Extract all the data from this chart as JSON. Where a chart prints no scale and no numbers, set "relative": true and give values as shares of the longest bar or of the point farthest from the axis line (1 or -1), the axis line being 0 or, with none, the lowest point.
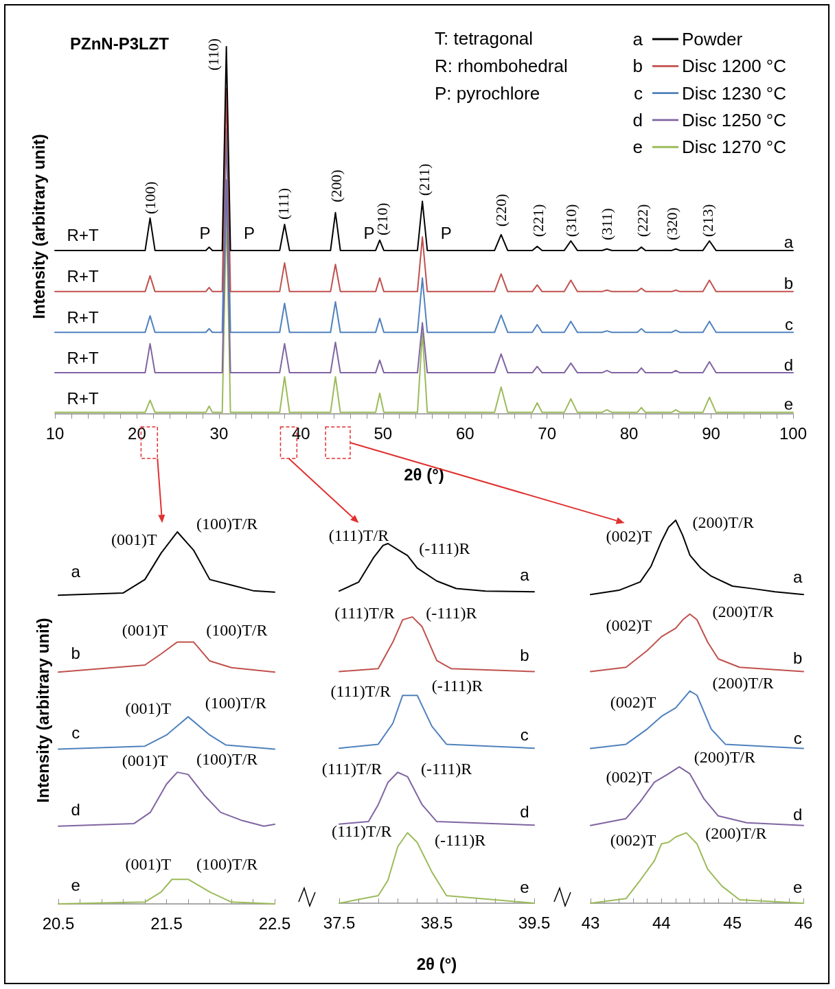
{
  "chart_data": [
    {
      "type": "line",
      "title": "PZnN-P3LZT",
      "xlabel": "2θ (°)",
      "ylabel": "Intensity (arbitrary unit)",
      "relative": true,
      "legend": "top right",
      "xlim": [
        10,
        100
      ],
      "xticks": [
        10,
        {
          "value": 12,
          "label": null
        },
        {
          "value": 14,
          "label": null
        },
        {
          "value": 16,
          "label": null
        },
        {
          "value": 18,
          "label": null
        },
        20,
        {
          "value": 22,
          "label": null
        },
        {
          "value": 24,
          "label": null
        },
        {
          "value": 26,
          "label": null
        },
        {
          "value": 28,
          "label": null
        },
        30,
        {
          "value": 32,
          "label": null
        },
        {
          "value": 34,
          "label": null
        },
        {
          "value": 36,
          "label": null
        },
        {
          "value": 38,
          "label": null
        },
        40,
        {
          "value": 42,
          "label": null
        },
        {
          "value": 44,
          "label": null
        },
        {
          "value": 46,
          "label": null
        },
        {
          "value": 48,
          "label": null
        },
        50,
        {
          "value": 52,
          "label": null
        },
        {
          "value": 54,
          "label": null
        },
        {
          "value": 56,
          "label": null
        },
        {
          "value": 58,
          "label": null
        },
        60,
        {
          "value": 62,
          "label": null
        },
        {
          "value": 64,
          "label": null
        },
        {
          "value": 66,
          "label": null
        },
        {
          "value": 68,
          "label": null
        },
        70,
        {
          "value": 72,
          "label": null
        },
        {
          "value": 74,
          "label": null
        },
        {
          "value": 76,
          "label": null
        },
        {
          "value": 78,
          "label": null
        },
        80,
        {
          "value": 82,
          "label": null
        },
        {
          "value": 84,
          "label": null
        },
        {
          "value": 86,
          "label": null
        },
        {
          "value": 88,
          "label": null
        },
        90,
        {
          "value": 92,
          "label": null
        },
        {
          "value": 94,
          "label": null
        },
        {
          "value": 96,
          "label": null
        },
        {
          "value": 98,
          "label": null
        },
        100
      ],
      "x": [
        10,
        21.0,
        21.6,
        22.2,
        28.4,
        28.8,
        29.2,
        30.4,
        30.9,
        31.4,
        37.4,
        38.0,
        38.6,
        43.6,
        44.2,
        44.8,
        49.1,
        49.6,
        50.1,
        54.2,
        54.8,
        55.4,
        63.6,
        64.4,
        65.2,
        68.2,
        68.8,
        69.4,
        72.1,
        72.9,
        73.7,
        76.7,
        77.3,
        77.9,
        81.0,
        81.5,
        82.0,
        85.2,
        85.7,
        86.2,
        89.0,
        89.8,
        90.6,
        100
      ],
      "series": [
        {
          "name": "Powder",
          "color": "#000000",
          "values": [
            0.445,
            0.445,
            0.533,
            0.445,
            0.445,
            0.454,
            0.445,
            0.445,
            1,
            0.445,
            0.445,
            0.516,
            0.445,
            0.445,
            0.548,
            0.445,
            0.445,
            0.473,
            0.445,
            0.445,
            0.579,
            0.445,
            0.445,
            0.488,
            0.445,
            0.445,
            0.456,
            0.445,
            0.445,
            0.471,
            0.445,
            0.445,
            0.449,
            0.445,
            0.445,
            0.454,
            0.445,
            0.445,
            0.449,
            0.445,
            0.445,
            0.471,
            0.445,
            0.445
          ]
        },
        {
          "name": "Disc 1200 °C",
          "color": "#c0504d",
          "values": [
            0.333,
            0.333,
            0.376,
            0.333,
            0.333,
            0.344,
            0.333,
            0.333,
            0.886,
            0.333,
            0.333,
            0.411,
            0.333,
            0.333,
            0.407,
            0.333,
            0.333,
            0.37,
            0.333,
            0.333,
            0.482,
            0.333,
            0.333,
            0.381,
            0.333,
            0.333,
            0.351,
            0.333,
            0.333,
            0.364,
            0.333,
            0.333,
            0.337,
            0.333,
            0.333,
            0.342,
            0.333,
            0.333,
            0.337,
            0.333,
            0.333,
            0.364,
            0.333,
            0.333
          ]
        },
        {
          "name": "Disc 1230 °C",
          "color": "#4f81bd",
          "values": [
            0.222,
            0.222,
            0.267,
            0.222,
            0.222,
            0.232,
            0.222,
            0.222,
            0.776,
            0.222,
            0.222,
            0.301,
            0.222,
            0.222,
            0.305,
            0.222,
            0.222,
            0.26,
            0.222,
            0.222,
            0.37,
            0.222,
            0.222,
            0.269,
            0.222,
            0.222,
            0.243,
            0.222,
            0.222,
            0.252,
            0.222,
            0.222,
            0.226,
            0.222,
            0.222,
            0.232,
            0.222,
            0.222,
            0.228,
            0.222,
            0.222,
            0.252,
            0.222,
            0.222
          ]
        },
        {
          "name": "Disc 1250 °C",
          "color": "#8064a2",
          "values": [
            0.112,
            0.112,
            0.191,
            0.112,
            0.112,
            0.112,
            0.112,
            0.112,
            0.637,
            0.112,
            0.112,
            0.191,
            0.112,
            0.112,
            0.195,
            0.112,
            0.112,
            0.146,
            0.112,
            0.112,
            0.248,
            0.112,
            0.112,
            0.163,
            0.112,
            0.112,
            0.129,
            0.112,
            0.112,
            0.138,
            0.112,
            0.112,
            0.118,
            0.112,
            0.112,
            0.125,
            0.112,
            0.112,
            0.118,
            0.112,
            0.112,
            0.142,
            0.112,
            0.112
          ]
        },
        {
          "name": "Disc 1270 °C",
          "color": "#9bbb59",
          "values": [
            0.004,
            0.004,
            0.037,
            0.004,
            0.004,
            0.021,
            0.004,
            0.004,
            0.553,
            0.004,
            0.004,
            0.101,
            0.004,
            0.004,
            0.101,
            0.004,
            0.004,
            0.056,
            0.004,
            0.004,
            0.222,
            0.004,
            0.004,
            0.073,
            0.004,
            0.004,
            0.03,
            0.004,
            0.004,
            0.041,
            0.004,
            0.004,
            0.011,
            0.004,
            0.004,
            0.017,
            0.004,
            0.004,
            0.011,
            0.004,
            0.004,
            0.045,
            0.004,
            0.004
          ]
        }
      ],
      "annotations": [
        "T: tetragonal",
        "R: rhombohedral",
        "P: pyrochlore",
        "(100)",
        "(110)",
        "(111)",
        "(200)",
        "(210)",
        "(211)",
        "(220)",
        "(221)",
        "(310)",
        "(311)",
        "(222)",
        "(320)",
        "(213)",
        "P",
        "P",
        "P",
        "P",
        "R+T",
        "R+T",
        "R+T",
        "R+T",
        "R+T",
        "a",
        "b",
        "c",
        "d",
        "e"
      ]
    },
    {
      "type": "line",
      "ylabel": "Intensity (arbitrary unit)",
      "relative": true,
      "xlim": [
        20.5,
        22.5
      ],
      "xticks": [
        20.5,
        {
          "value": 20.7,
          "label": null
        },
        {
          "value": 20.9,
          "label": null
        },
        {
          "value": 21.1,
          "label": null
        },
        {
          "value": 21.3,
          "label": null
        },
        21.5,
        {
          "value": 21.7,
          "label": null
        },
        {
          "value": 21.9,
          "label": null
        },
        {
          "value": 22.1,
          "label": null
        },
        {
          "value": 22.3,
          "label": null
        },
        22.5
      ],
      "series": [
        {
          "color": "#000000",
          "x": [
            20.5,
            21.1,
            21.3,
            21.45,
            21.6,
            21.75,
            21.9,
            22.1,
            22.3,
            22.5
          ],
          "values": [
            0.83,
            0.836,
            0.872,
            0.943,
            1,
            0.951,
            0.872,
            0.857,
            0.842,
            0.838
          ]
        },
        {
          "color": "#c0504d",
          "x": [
            20.5,
            21.3,
            21.45,
            21.6,
            21.75,
            21.9,
            22.1,
            22.5
          ],
          "values": [
            0.623,
            0.642,
            0.672,
            0.704,
            0.704,
            0.653,
            0.635,
            0.623
          ]
        },
        {
          "color": "#4f81bd",
          "x": [
            20.5,
            21.3,
            21.5,
            21.7,
            21.9,
            22.05,
            22.5
          ],
          "values": [
            0.416,
            0.424,
            0.454,
            0.503,
            0.454,
            0.427,
            0.416
          ]
        },
        {
          "color": "#8064a2",
          "x": [
            20.5,
            21.2,
            21.35,
            21.5,
            21.6,
            21.7,
            21.85,
            22.0,
            22.2,
            22.4,
            22.5
          ],
          "values": [
            0.209,
            0.216,
            0.246,
            0.322,
            0.354,
            0.348,
            0.292,
            0.246,
            0.224,
            0.209,
            0.214
          ]
        },
        {
          "color": "#9bbb59",
          "x": [
            20.5,
            21.3,
            21.45,
            21.55,
            21.7,
            21.9,
            22.1,
            22.5
          ],
          "values": [
            0,
            0.005,
            0.032,
            0.066,
            0.066,
            0.032,
            0.005,
            0
          ]
        }
      ],
      "annotations": [
        "(001)T",
        "(100)T/R",
        "(001)T",
        "(100)T/R",
        "(001)T",
        "(100)T/R",
        "(001)T",
        "(100)T/R",
        "(001)T",
        "(100)T/R",
        "a",
        "b",
        "c",
        "d",
        "e"
      ]
    },
    {
      "type": "line",
      "xlabel": "2θ (°)",
      "relative": true,
      "xlim": [
        37.5,
        39.5
      ],
      "xticks": [
        37.5,
        {
          "value": 37.7,
          "label": null
        },
        {
          "value": 37.9,
          "label": null
        },
        {
          "value": 38.1,
          "label": null
        },
        {
          "value": 38.3,
          "label": null
        },
        38.5,
        {
          "value": 38.7,
          "label": null
        },
        {
          "value": 38.9,
          "label": null
        },
        {
          "value": 39.1,
          "label": null
        },
        {
          "value": 39.3,
          "label": null
        },
        39.5
      ],
      "series": [
        {
          "color": "#000000",
          "x": [
            37.5,
            37.7,
            37.85,
            37.95,
            38.0,
            38.1,
            38.2,
            38.3,
            38.5,
            38.7,
            39.0,
            39.5
          ],
          "values": [
            0.868,
            0.893,
            0.96,
            0.995,
            1,
            0.983,
            0.967,
            0.932,
            0.896,
            0.875,
            0.868,
            0.866
          ]
        },
        {
          "color": "#c0504d",
          "x": [
            37.5,
            37.9,
            38.05,
            38.15,
            38.25,
            38.35,
            38.5,
            38.65,
            39.5
          ],
          "values": [
            0.644,
            0.652,
            0.726,
            0.788,
            0.796,
            0.769,
            0.675,
            0.652,
            0.644
          ]
        },
        {
          "color": "#4f81bd",
          "x": [
            37.5,
            37.9,
            38.05,
            38.15,
            38.3,
            38.45,
            38.6,
            39.5
          ],
          "values": [
            0.431,
            0.442,
            0.5,
            0.578,
            0.578,
            0.492,
            0.442,
            0.431
          ]
        },
        {
          "color": "#8064a2",
          "x": [
            37.5,
            37.8,
            37.9,
            38.0,
            38.1,
            38.2,
            38.35,
            38.5,
            39.5
          ],
          "values": [
            0.22,
            0.227,
            0.274,
            0.336,
            0.364,
            0.352,
            0.274,
            0.227,
            0.217
          ]
        },
        {
          "color": "#9bbb59",
          "x": [
            37.5,
            37.9,
            38.0,
            38.1,
            38.2,
            38.3,
            38.45,
            38.6,
            39.5
          ],
          "values": [
            0,
            0.021,
            0.064,
            0.157,
            0.196,
            0.169,
            0.087,
            0.021,
            0
          ]
        }
      ],
      "annotations": [
        "(111)T/R",
        "(-111)R",
        "(111)T/R",
        "(-111)R",
        "(111)T/R",
        "(-111)R",
        "(111)T/R",
        "(-111)R",
        "(111)T/R",
        "(-111)R",
        "a",
        "b",
        "c",
        "d",
        "e"
      ]
    },
    {
      "type": "line",
      "relative": true,
      "xlim": [
        43,
        46
      ],
      "xticks": [
        43,
        {
          "value": 43.2,
          "label": null
        },
        {
          "value": 43.4,
          "label": null
        },
        {
          "value": 43.6,
          "label": null
        },
        {
          "value": 43.8,
          "label": null
        },
        44,
        {
          "value": 44.2,
          "label": null
        },
        {
          "value": 44.4,
          "label": null
        },
        {
          "value": 44.6,
          "label": null
        },
        {
          "value": 44.8,
          "label": null
        },
        45,
        {
          "value": 45.2,
          "label": null
        },
        {
          "value": 45.4,
          "label": null
        },
        {
          "value": 45.6,
          "label": null
        },
        {
          "value": 45.8,
          "label": null
        },
        46
      ],
      "series": [
        {
          "color": "#000000",
          "x": [
            43,
            43.4,
            43.7,
            43.85,
            44.0,
            44.1,
            44.2,
            44.3,
            44.4,
            44.55,
            44.7,
            45.0,
            45.3,
            45.6,
            46
          ],
          "values": [
            0.806,
            0.817,
            0.839,
            0.879,
            0.945,
            0.982,
            1,
            0.96,
            0.909,
            0.876,
            0.854,
            0.828,
            0.821,
            0.813,
            0.806
          ]
        },
        {
          "color": "#c0504d",
          "x": [
            43,
            43.5,
            43.8,
            44.0,
            44.2,
            44.3,
            44.4,
            44.5,
            44.65,
            44.8,
            45.1,
            46
          ],
          "values": [
            0.605,
            0.616,
            0.66,
            0.696,
            0.718,
            0.74,
            0.755,
            0.74,
            0.682,
            0.638,
            0.616,
            0.605
          ]
        },
        {
          "color": "#4f81bd",
          "x": [
            43,
            43.5,
            43.8,
            44.0,
            44.2,
            44.4,
            44.5,
            44.7,
            44.9,
            46
          ],
          "values": [
            0.404,
            0.415,
            0.455,
            0.488,
            0.51,
            0.554,
            0.543,
            0.455,
            0.415,
            0.404
          ]
        },
        {
          "color": "#8064a2",
          "x": [
            43,
            43.5,
            43.7,
            43.9,
            44.1,
            44.25,
            44.4,
            44.6,
            44.8,
            45.2,
            46
          ],
          "values": [
            0.203,
            0.221,
            0.265,
            0.316,
            0.338,
            0.356,
            0.338,
            0.272,
            0.228,
            0.21,
            0.203
          ]
        },
        {
          "color": "#9bbb59",
          "x": [
            43,
            43.5,
            43.7,
            43.9,
            44.0,
            44.1,
            44.2,
            44.35,
            44.5,
            44.65,
            44.85,
            45.1,
            46
          ],
          "values": [
            0,
            0.012,
            0.06,
            0.111,
            0.155,
            0.159,
            0.173,
            0.184,
            0.155,
            0.089,
            0.045,
            0.009,
            0
          ]
        }
      ],
      "annotations": [
        "(002)T",
        "(200)T/R",
        "(002)T",
        "(200)T/R",
        "(002)T",
        "(200)T/R",
        "(002)T",
        "(200)T/R",
        "(002)T",
        "(200)T/R",
        "a",
        "b",
        "c",
        "d",
        "e"
      ]
    }
  ]
}
